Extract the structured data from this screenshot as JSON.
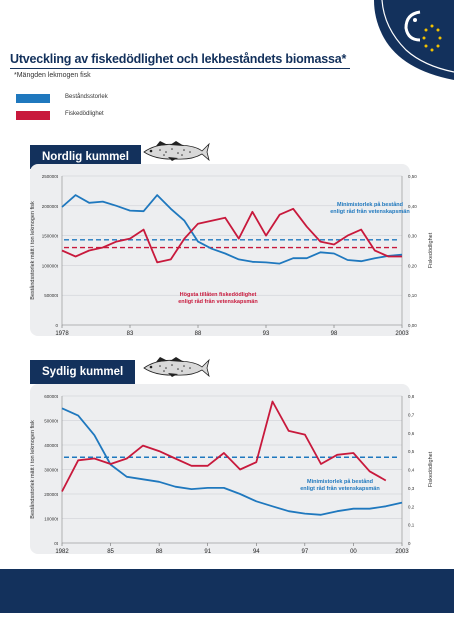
{
  "page": {
    "title": "Utveckling av fiskedödlighet och lekbeståndets biomassa*",
    "subtitle": "*Mängden lekmogen fisk",
    "legend": [
      {
        "label": "Beståndsstorlek",
        "color": "#1f78be"
      },
      {
        "label": "Fiskedödlighet",
        "color": "#c8193c"
      }
    ],
    "logo_icon": "fish-eu-stars-icon",
    "fish_icon": "fish-illustration-icon",
    "colors": {
      "navy": "#13315c",
      "blue": "#1f78be",
      "red": "#c8193c",
      "panel": "#edeef0"
    }
  },
  "chart_data": [
    {
      "type": "line",
      "title": "Nordlig kummel",
      "ylabel_left": "Beståndsstorlek mätt i ton lekmogen fisk",
      "ylabel_right": "Fiskedödlighet",
      "x_ticks": [
        "1978",
        "83",
        "88",
        "93",
        "98",
        "2003"
      ],
      "x_tick_values": [
        1978,
        1983,
        1988,
        1993,
        1998,
        2003
      ],
      "y_left_ticks": [
        "250000t",
        "200000t",
        "150000t",
        "100000t",
        "50000t",
        "0"
      ],
      "y_left_tick_values": [
        250000,
        200000,
        150000,
        100000,
        50000,
        0
      ],
      "y_left_range": [
        0,
        250000
      ],
      "y_right_ticks": [
        "0,50",
        "0,40",
        "0,30",
        "0,20",
        "0,10",
        "0,00"
      ],
      "y_right_tick_values": [
        0.5,
        0.4,
        0.3,
        0.2,
        0.1,
        0.0
      ],
      "y_right_range": [
        0,
        0.5
      ],
      "x_range": [
        1978,
        2003
      ],
      "grid": true,
      "series": [
        {
          "name": "Beståndsstorlek",
          "axis": "left",
          "x": [
            1978,
            1979,
            1980,
            1981,
            1982,
            1983,
            1984,
            1985,
            1986,
            1987,
            1988,
            1989,
            1990,
            1991,
            1992,
            1993,
            1994,
            1995,
            1996,
            1997,
            1998,
            1999,
            2000,
            2001,
            2002,
            2003
          ],
          "values": [
            198000,
            218000,
            205000,
            207000,
            200000,
            192000,
            191000,
            218000,
            195000,
            175000,
            140000,
            128000,
            120000,
            110000,
            106000,
            105000,
            103000,
            112000,
            112000,
            122000,
            120000,
            109000,
            107000,
            112000,
            116000,
            118000
          ]
        },
        {
          "name": "Fiskedödlighet",
          "axis": "right",
          "x": [
            1978,
            1979,
            1980,
            1981,
            1982,
            1983,
            1984,
            1985,
            1986,
            1987,
            1988,
            1989,
            1990,
            1991,
            1992,
            1993,
            1994,
            1995,
            1996,
            1997,
            1998,
            1999,
            2000,
            2001,
            2002,
            2003
          ],
          "values": [
            0.25,
            0.23,
            0.25,
            0.26,
            0.28,
            0.29,
            0.32,
            0.21,
            0.22,
            0.29,
            0.34,
            0.35,
            0.36,
            0.29,
            0.38,
            0.3,
            0.37,
            0.39,
            0.33,
            0.28,
            0.27,
            0.3,
            0.32,
            0.25,
            0.23,
            0.23
          ]
        }
      ],
      "reference_lines": [
        {
          "axis": "left",
          "value": 143000,
          "color": "#1f78be",
          "label": "Minimistorlek på bestånd enligt råd från vetenskapsmän"
        },
        {
          "axis": "right",
          "value": 0.26,
          "color": "#c8193c",
          "label": "Högsta tillåten fiskedödlighet enligt råd från vetenskapsmän"
        }
      ]
    },
    {
      "type": "line",
      "title": "Sydlig kummel",
      "ylabel_left": "Beståndsstorlek mätt i ton lekmogen fisk",
      "ylabel_right": "Fiskedödlighet",
      "x_ticks": [
        "1982",
        "85",
        "88",
        "91",
        "94",
        "97",
        "00",
        "2003"
      ],
      "x_tick_values": [
        1982,
        1985,
        1988,
        1991,
        1994,
        1997,
        2000,
        2003
      ],
      "y_left_ticks": [
        "60000t",
        "50000t",
        "40000t",
        "30000t",
        "20000t",
        "10000t",
        "0t"
      ],
      "y_left_tick_values": [
        60000,
        50000,
        40000,
        30000,
        20000,
        10000,
        0
      ],
      "y_left_range": [
        0,
        60000
      ],
      "y_right_ticks": [
        "0,8",
        "0,7",
        "0,6",
        "0,5",
        "0,4",
        "0,3",
        "0,2",
        "0,1",
        "0"
      ],
      "y_right_tick_values": [
        0.8,
        0.7,
        0.6,
        0.5,
        0.4,
        0.3,
        0.2,
        0.1,
        0.0
      ],
      "y_right_range": [
        0,
        0.8
      ],
      "x_range": [
        1982,
        2003
      ],
      "grid": true,
      "series": [
        {
          "name": "Beståndsstorlek",
          "axis": "left",
          "x": [
            1982,
            1983,
            1984,
            1985,
            1986,
            1987,
            1988,
            1989,
            1990,
            1991,
            1992,
            1993,
            1994,
            1995,
            1996,
            1997,
            1998,
            1999,
            2000,
            2001,
            2002,
            2003
          ],
          "values": [
            55000,
            52000,
            44000,
            32000,
            27000,
            26000,
            25000,
            23000,
            22000,
            22500,
            22500,
            20000,
            17000,
            15000,
            13000,
            12000,
            11500,
            13000,
            14000,
            14000,
            15000,
            16500
          ]
        },
        {
          "name": "Fiskedödlighet",
          "axis": "right",
          "x": [
            1982,
            1983,
            1984,
            1985,
            1986,
            1987,
            1988,
            1989,
            1990,
            1991,
            1992,
            1993,
            1994,
            1995,
            1996,
            1997,
            1998,
            1999,
            2000,
            2001,
            2002
          ],
          "values": [
            0.28,
            0.45,
            0.46,
            0.43,
            0.46,
            0.53,
            0.5,
            0.46,
            0.42,
            0.42,
            0.49,
            0.4,
            0.44,
            0.77,
            0.61,
            0.59,
            0.43,
            0.48,
            0.49,
            0.39,
            0.34
          ]
        }
      ],
      "reference_lines": [
        {
          "axis": "left",
          "value": 35000,
          "color": "#1f78be",
          "label": "Minimistorlek på bestånd enligt råd från vetenskapsmän"
        }
      ]
    }
  ]
}
